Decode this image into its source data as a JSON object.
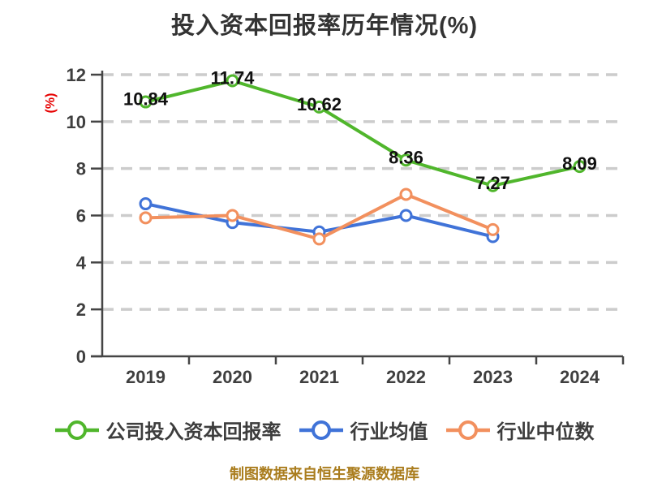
{
  "footer": "制图数据来自恒生聚源数据库",
  "colors": {
    "background": "#ffffff",
    "title": "#333333",
    "axis": "#454545",
    "tick_label": "#3f3f3f",
    "grid": "#cccccc",
    "value_label": "#111111",
    "ylabel_red": "#e60000",
    "legend_label": "#3d3d3d",
    "footer": "#aa7d1e",
    "marker_fill": "#ffffff"
  },
  "chart_data": {
    "type": "line",
    "title": "投入资本回报率历年情况(%)",
    "ylabel": "(%)",
    "xlabel": "",
    "categories": [
      "2019",
      "2020",
      "2021",
      "2022",
      "2023",
      "2024"
    ],
    "ylim": [
      0,
      12
    ],
    "ytick_interval": 2,
    "yticks": [
      0,
      2,
      4,
      6,
      8,
      10,
      12
    ],
    "grid": "horizontal-dashed",
    "legend_position": "bottom",
    "series": [
      {
        "name": "公司投入资本回报率",
        "color": "#50b62c",
        "values": [
          10.84,
          11.74,
          10.62,
          8.36,
          7.27,
          8.09
        ],
        "labels": [
          "10.84",
          "11.74",
          "10.62",
          "8.36",
          "7.27",
          "8.09"
        ]
      },
      {
        "name": "行业均值",
        "color": "#4073d8",
        "values": [
          6.5,
          5.7,
          5.3,
          6.0,
          5.1,
          null
        ]
      },
      {
        "name": "行业中位数",
        "color": "#f2905e",
        "values": [
          5.9,
          6.0,
          5.0,
          6.9,
          5.4,
          null
        ]
      }
    ]
  }
}
